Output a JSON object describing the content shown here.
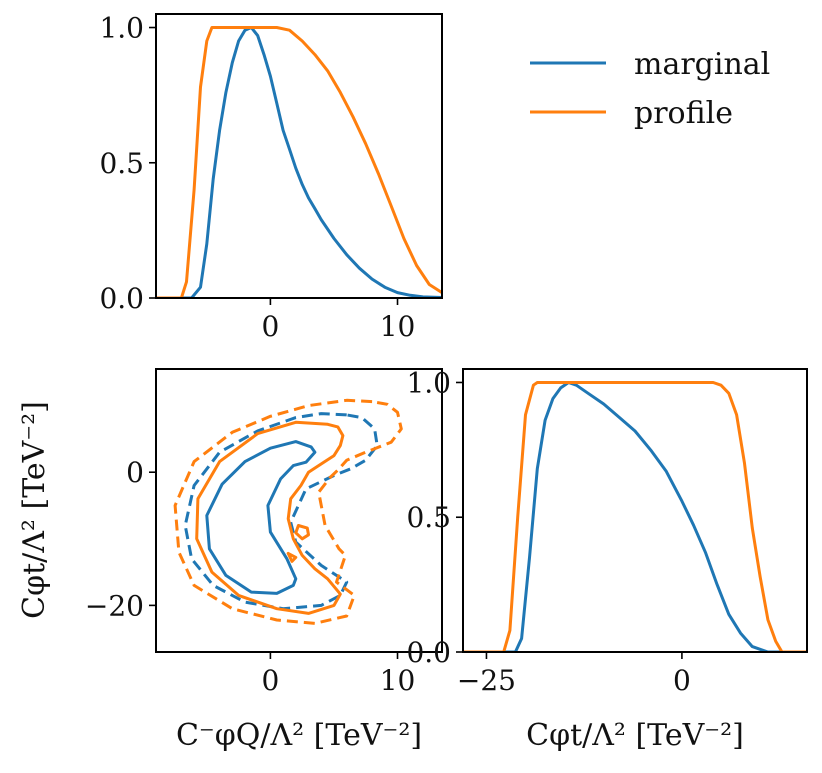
{
  "chart_data": [
    {
      "panel": "top-left",
      "type": "line",
      "xlim": [
        -9,
        13.5
      ],
      "ylim": [
        0,
        1.05
      ],
      "xticks": [
        0,
        10
      ],
      "xtick_labels": [
        "0",
        "10"
      ],
      "yticks": [
        0,
        0.5,
        1.0
      ],
      "ytick_labels": [
        "0.0",
        "0.5",
        "1.0"
      ],
      "xlabel": "",
      "ylabel": "",
      "series": [
        {
          "name": "marginal",
          "color": "#1f77b4",
          "x": [
            -9,
            -6.2,
            -5.5,
            -5.0,
            -4.5,
            -4.0,
            -3.5,
            -3.0,
            -2.5,
            -2.0,
            -1.5,
            -1.0,
            -0.5,
            0,
            0.5,
            1,
            1.5,
            2,
            2.5,
            3,
            3.5,
            4,
            5,
            6,
            7,
            8,
            9,
            10,
            11,
            12,
            13.5
          ],
          "y": [
            0.0,
            0.0,
            0.04,
            0.2,
            0.44,
            0.62,
            0.76,
            0.87,
            0.95,
            0.99,
            1.0,
            0.97,
            0.9,
            0.82,
            0.72,
            0.62,
            0.55,
            0.48,
            0.42,
            0.37,
            0.33,
            0.29,
            0.22,
            0.16,
            0.11,
            0.07,
            0.04,
            0.02,
            0.01,
            0.004,
            0.002
          ]
        },
        {
          "name": "profile",
          "color": "#ff7f0e",
          "x": [
            -9,
            -7.0,
            -6.6,
            -6.0,
            -5.5,
            -5.0,
            -4.6,
            0.5,
            1.5,
            2.5,
            3.5,
            4.5,
            5.5,
            6.5,
            7.5,
            8.5,
            9.5,
            10.5,
            11.5,
            12.5,
            13.5
          ],
          "y": [
            0.0,
            0.0,
            0.06,
            0.4,
            0.78,
            0.95,
            1.0,
            1.0,
            0.99,
            0.95,
            0.9,
            0.84,
            0.76,
            0.67,
            0.57,
            0.46,
            0.34,
            0.22,
            0.12,
            0.05,
            0.02
          ]
        }
      ]
    },
    {
      "panel": "bottom-left",
      "type": "line",
      "subtype": "contour",
      "xlim": [
        -9,
        13.5
      ],
      "ylim": [
        -27,
        15.5
      ],
      "xticks": [
        0,
        10
      ],
      "xtick_labels": [
        "0",
        "10"
      ],
      "yticks": [
        -20,
        0
      ],
      "ytick_labels": [
        "−20",
        "0"
      ],
      "xlabel": "C⁻φQ/Λ² [TeV⁻²]",
      "ylabel": "Cφt/Λ² [TeV⁻²]",
      "series": [
        {
          "name": "marginal-solid",
          "color": "#1f77b4",
          "style": "solid",
          "x": [
            3.2,
            2.0,
            0.0,
            -2.0,
            -3.8,
            -5.0,
            -4.8,
            -3.5,
            -1.5,
            0.5,
            1.8,
            2.0,
            1.3,
            0.0,
            -0.2,
            0.8,
            1.8,
            2.8,
            3.5,
            3.2
          ],
          "y": [
            3.8,
            4.6,
            3.6,
            1.6,
            -1.8,
            -6.5,
            -11.5,
            -15.5,
            -18.0,
            -18.2,
            -17.0,
            -16.0,
            -13.0,
            -9.0,
            -5.0,
            -1.0,
            1.0,
            1.5,
            3.0,
            3.8
          ]
        },
        {
          "name": "marginal-dashed",
          "color": "#1f77b4",
          "style": "dashed",
          "x": [
            6.0,
            4.0,
            2.0,
            -1.0,
            -4.0,
            -6.0,
            -6.7,
            -6.2,
            -4.5,
            -2.0,
            1.0,
            4.0,
            5.5,
            6.0,
            4.0,
            2.0,
            1.6,
            2.8,
            5.0,
            6.3,
            7.5,
            8.4,
            8.2,
            7.2,
            6.0
          ],
          "y": [
            8.6,
            8.8,
            8.2,
            6.2,
            3.0,
            -2.0,
            -8.0,
            -13.0,
            -17.0,
            -19.5,
            -20.5,
            -20.0,
            -18.5,
            -16.5,
            -14.0,
            -10.5,
            -7.5,
            -2.5,
            -0.5,
            0.5,
            1.8,
            4.0,
            6.5,
            8.2,
            8.6
          ]
        },
        {
          "name": "profile-solid",
          "color": "#ff7f0e",
          "style": "solid",
          "x": [
            4.5,
            2.0,
            -1.0,
            -4.0,
            -5.7,
            -5.8,
            -4.6,
            -2.5,
            0.5,
            3.0,
            5.0,
            5.5,
            4.5,
            3.5,
            2.5,
            1.8,
            1.4,
            1.6,
            2.4,
            3.0,
            4.2,
            5.0,
            5.5,
            5.7,
            5.3,
            4.5
          ],
          "y": [
            7.2,
            7.5,
            5.8,
            1.6,
            -4.0,
            -10.0,
            -15.0,
            -18.5,
            -20.5,
            -21.2,
            -20.0,
            -18.3,
            -16.0,
            -14.5,
            -12.5,
            -10.0,
            -7.0,
            -4.0,
            -2.0,
            0.0,
            1.5,
            2.5,
            4.0,
            5.5,
            6.8,
            7.2
          ]
        },
        {
          "name": "profile-solid-island",
          "color": "#ff7f0e",
          "style": "solid",
          "x": [
            2.2,
            2.9,
            3.0,
            2.5,
            2.0,
            2.2
          ],
          "y": [
            -8.0,
            -8.4,
            -9.4,
            -10.0,
            -9.1,
            -8.0
          ]
        },
        {
          "name": "profile-solid-dot",
          "color": "#ff7f0e",
          "style": "solid",
          "x": [
            1.4,
            2.0,
            1.7,
            1.4
          ],
          "y": [
            -12.2,
            -12.8,
            -13.4,
            -12.2
          ]
        },
        {
          "name": "profile-dashed",
          "color": "#ff7f0e",
          "style": "dashed",
          "x": [
            8.0,
            6.0,
            3.0,
            0.0,
            -3.0,
            -6.0,
            -7.5,
            -7.2,
            -6.0,
            -3.0,
            0.5,
            3.5,
            6.0,
            6.6,
            5.2,
            5.9,
            5.4,
            4.3,
            3.8,
            4.7,
            5.4,
            6.0,
            7.5,
            9.5,
            10.3,
            10.0,
            9.2,
            8.0
          ],
          "y": [
            10.6,
            10.8,
            10.0,
            8.4,
            6.0,
            1.6,
            -5.0,
            -12.0,
            -17.0,
            -20.5,
            -22.2,
            -22.7,
            -21.6,
            -18.5,
            -16.5,
            -12.5,
            -11.5,
            -8.0,
            -3.0,
            -0.8,
            0.5,
            1.8,
            3.0,
            4.5,
            6.5,
            9.0,
            10.2,
            10.6
          ]
        }
      ]
    },
    {
      "panel": "bottom-right",
      "type": "line",
      "xlim": [
        -28,
        16
      ],
      "ylim": [
        0,
        1.05
      ],
      "xticks": [
        -25,
        0
      ],
      "xtick_labels": [
        "−25",
        "0"
      ],
      "yticks": [
        0,
        0.5,
        1.0
      ],
      "ytick_labels": [
        "0.0",
        "0.5",
        "1.0"
      ],
      "xlabel": "Cφt/Λ² [TeV⁻²]",
      "ylabel": "",
      "series": [
        {
          "name": "marginal",
          "color": "#1f77b4",
          "x": [
            -28,
            -21.3,
            -20.5,
            -19.5,
            -18.5,
            -17.5,
            -16.5,
            -15.5,
            -14.5,
            -13.5,
            -12.0,
            -10.0,
            -8.0,
            -6.0,
            -4.0,
            -2.0,
            0.0,
            1.5,
            3.0,
            4.5,
            6.0,
            7.5,
            9.0,
            10.0,
            11.0,
            16.0
          ],
          "y": [
            0.0,
            0.0,
            0.05,
            0.35,
            0.68,
            0.86,
            0.94,
            0.98,
            1.0,
            0.99,
            0.96,
            0.92,
            0.87,
            0.82,
            0.75,
            0.67,
            0.56,
            0.47,
            0.37,
            0.25,
            0.14,
            0.07,
            0.02,
            0.01,
            0.0,
            0.0
          ]
        },
        {
          "name": "profile",
          "color": "#ff7f0e",
          "x": [
            -28,
            -22.8,
            -22.0,
            -21.0,
            -20.0,
            -19.0,
            -18.5,
            4.0,
            5.0,
            6.0,
            7.0,
            8.0,
            9.0,
            10.0,
            11.0,
            12.0,
            12.8,
            16.0
          ],
          "y": [
            0.0,
            0.0,
            0.08,
            0.5,
            0.88,
            0.99,
            1.0,
            1.0,
            0.99,
            0.96,
            0.88,
            0.7,
            0.46,
            0.28,
            0.12,
            0.04,
            0.0,
            0.0
          ]
        }
      ]
    }
  ],
  "legend": {
    "placement": "top-right",
    "entries": [
      {
        "label": "marginal",
        "color": "#1f77b4"
      },
      {
        "label": "profile",
        "color": "#ff7f0e"
      }
    ]
  }
}
